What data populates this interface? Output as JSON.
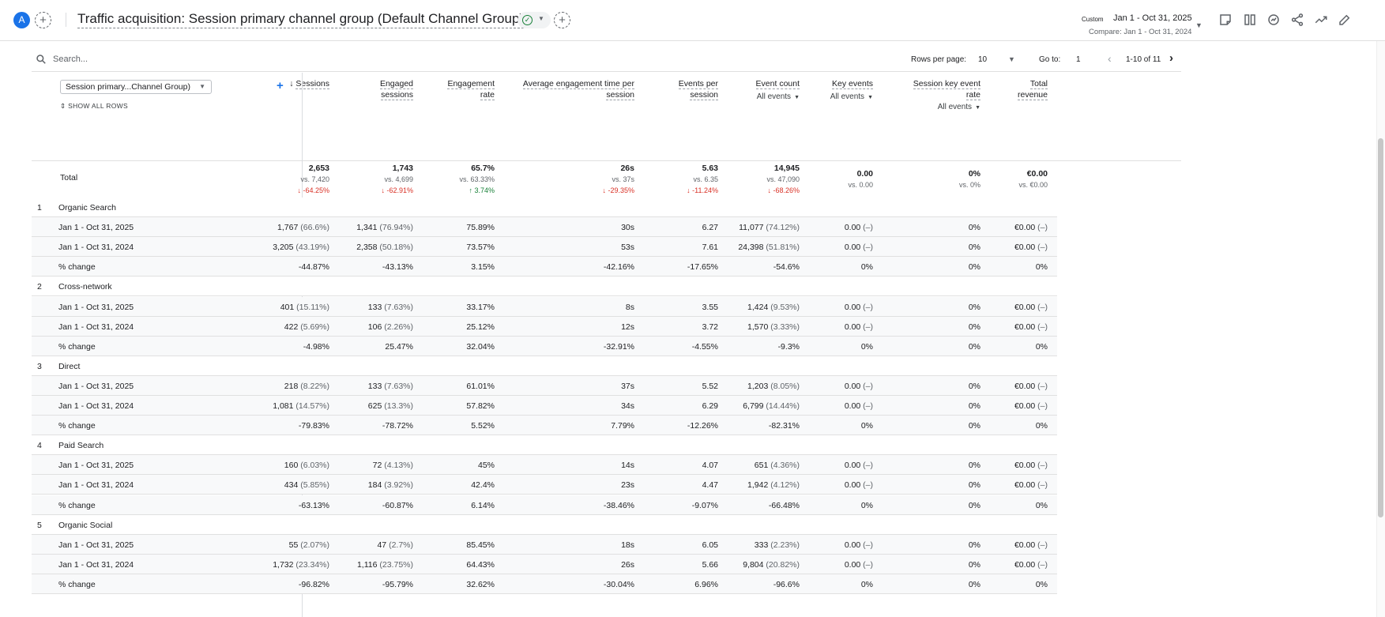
{
  "header": {
    "avatar_letter": "A",
    "title": "Traffic acquisition: Session primary channel group (Default Channel Group)",
    "date_custom": "Custom",
    "date_range": "Jan 1 - Oct 31, 2025",
    "date_compare": "Compare: Jan 1 - Oct 31, 2024",
    "icons": [
      "add-comparison-icon",
      "status-check-icon",
      "add-report-icon",
      "insights-note-icon",
      "compare-columns-icon",
      "explore-icon",
      "share-icon",
      "trend-icon",
      "edit-icon"
    ]
  },
  "toolbar": {
    "search_placeholder": "Search...",
    "rows_per_page_label": "Rows per page:",
    "rows_per_page_value": "10",
    "goto_label": "Go to:",
    "goto_value": "1",
    "page_info": "1-10 of 11"
  },
  "dimension": {
    "select_label": "Session primary...Channel Group)",
    "show_all": "SHOW ALL ROWS"
  },
  "columns": [
    {
      "label1": "Sessions",
      "label2": "",
      "sub": ""
    },
    {
      "label1": "Engaged",
      "label2": "sessions",
      "sub": ""
    },
    {
      "label1": "Engagement",
      "label2": "rate",
      "sub": ""
    },
    {
      "label1": "Average engagement time per",
      "label2": "session",
      "sub": ""
    },
    {
      "label1": "Events per",
      "label2": "session",
      "sub": ""
    },
    {
      "label1": "Event count",
      "label2": "",
      "sub": "All events"
    },
    {
      "label1": "Key events",
      "label2": "",
      "sub": "All events"
    },
    {
      "label1": "Session key event",
      "label2": "rate",
      "sub": "All events"
    },
    {
      "label1": "Total",
      "label2": "revenue",
      "sub": ""
    }
  ],
  "totals": {
    "label": "Total",
    "cells": [
      {
        "v": "2,653",
        "c": "vs. 7,420",
        "p": "↓ -64.25%",
        "dir": "down"
      },
      {
        "v": "1,743",
        "c": "vs. 4,699",
        "p": "↓ -62.91%",
        "dir": "down"
      },
      {
        "v": "65.7%",
        "c": "vs. 63.33%",
        "p": "↑ 3.74%",
        "dir": "up"
      },
      {
        "v": "26s",
        "c": "vs. 37s",
        "p": "↓ -29.35%",
        "dir": "down"
      },
      {
        "v": "5.63",
        "c": "vs. 6.35",
        "p": "↓ -11.24%",
        "dir": "down"
      },
      {
        "v": "14,945",
        "c": "vs. 47,090",
        "p": "↓ -68.26%",
        "dir": "down"
      },
      {
        "v": "0.00",
        "c": "vs. 0.00",
        "p": "",
        "dir": ""
      },
      {
        "v": "0%",
        "c": "vs. 0%",
        "p": "",
        "dir": ""
      },
      {
        "v": "€0.00",
        "c": "vs. €0.00",
        "p": "",
        "dir": ""
      }
    ]
  },
  "groups": [
    {
      "index": "1",
      "name": "Organic Search",
      "rows": [
        {
          "label": "Jan 1 - Oct 31, 2025",
          "cells": [
            [
              "1,767",
              " (66.6%)"
            ],
            [
              "1,341",
              " (76.94%)"
            ],
            [
              "75.89%",
              ""
            ],
            [
              "30s",
              ""
            ],
            [
              "6.27",
              ""
            ],
            [
              "11,077",
              " (74.12%)"
            ],
            [
              "0.00",
              " (–)"
            ],
            [
              "0%",
              ""
            ],
            [
              "€0.00",
              " (–)"
            ]
          ]
        },
        {
          "label": "Jan 1 - Oct 31, 2024",
          "cells": [
            [
              "3,205",
              " (43.19%)"
            ],
            [
              "2,358",
              " (50.18%)"
            ],
            [
              "73.57%",
              ""
            ],
            [
              "53s",
              ""
            ],
            [
              "7.61",
              ""
            ],
            [
              "24,398",
              " (51.81%)"
            ],
            [
              "0.00",
              " (–)"
            ],
            [
              "0%",
              ""
            ],
            [
              "€0.00",
              " (–)"
            ]
          ]
        },
        {
          "label": "% change",
          "cells": [
            [
              "-44.87%",
              ""
            ],
            [
              "-43.13%",
              ""
            ],
            [
              "3.15%",
              ""
            ],
            [
              "-42.16%",
              ""
            ],
            [
              "-17.65%",
              ""
            ],
            [
              "-54.6%",
              ""
            ],
            [
              "0%",
              ""
            ],
            [
              "0%",
              ""
            ],
            [
              "0%",
              ""
            ]
          ]
        }
      ]
    },
    {
      "index": "2",
      "name": "Cross-network",
      "rows": [
        {
          "label": "Jan 1 - Oct 31, 2025",
          "cells": [
            [
              "401",
              " (15.11%)"
            ],
            [
              "133",
              " (7.63%)"
            ],
            [
              "33.17%",
              ""
            ],
            [
              "8s",
              ""
            ],
            [
              "3.55",
              ""
            ],
            [
              "1,424",
              " (9.53%)"
            ],
            [
              "0.00",
              " (–)"
            ],
            [
              "0%",
              ""
            ],
            [
              "€0.00",
              " (–)"
            ]
          ]
        },
        {
          "label": "Jan 1 - Oct 31, 2024",
          "cells": [
            [
              "422",
              " (5.69%)"
            ],
            [
              "106",
              " (2.26%)"
            ],
            [
              "25.12%",
              ""
            ],
            [
              "12s",
              ""
            ],
            [
              "3.72",
              ""
            ],
            [
              "1,570",
              " (3.33%)"
            ],
            [
              "0.00",
              " (–)"
            ],
            [
              "0%",
              ""
            ],
            [
              "€0.00",
              " (–)"
            ]
          ]
        },
        {
          "label": "% change",
          "cells": [
            [
              "-4.98%",
              ""
            ],
            [
              "25.47%",
              ""
            ],
            [
              "32.04%",
              ""
            ],
            [
              "-32.91%",
              ""
            ],
            [
              "-4.55%",
              ""
            ],
            [
              "-9.3%",
              ""
            ],
            [
              "0%",
              ""
            ],
            [
              "0%",
              ""
            ],
            [
              "0%",
              ""
            ]
          ]
        }
      ]
    },
    {
      "index": "3",
      "name": "Direct",
      "rows": [
        {
          "label": "Jan 1 - Oct 31, 2025",
          "cells": [
            [
              "218",
              " (8.22%)"
            ],
            [
              "133",
              " (7.63%)"
            ],
            [
              "61.01%",
              ""
            ],
            [
              "37s",
              ""
            ],
            [
              "5.52",
              ""
            ],
            [
              "1,203",
              " (8.05%)"
            ],
            [
              "0.00",
              " (–)"
            ],
            [
              "0%",
              ""
            ],
            [
              "€0.00",
              " (–)"
            ]
          ]
        },
        {
          "label": "Jan 1 - Oct 31, 2024",
          "cells": [
            [
              "1,081",
              " (14.57%)"
            ],
            [
              "625",
              " (13.3%)"
            ],
            [
              "57.82%",
              ""
            ],
            [
              "34s",
              ""
            ],
            [
              "6.29",
              ""
            ],
            [
              "6,799",
              " (14.44%)"
            ],
            [
              "0.00",
              " (–)"
            ],
            [
              "0%",
              ""
            ],
            [
              "€0.00",
              " (–)"
            ]
          ]
        },
        {
          "label": "% change",
          "cells": [
            [
              "-79.83%",
              ""
            ],
            [
              "-78.72%",
              ""
            ],
            [
              "5.52%",
              ""
            ],
            [
              "7.79%",
              ""
            ],
            [
              "-12.26%",
              ""
            ],
            [
              "-82.31%",
              ""
            ],
            [
              "0%",
              ""
            ],
            [
              "0%",
              ""
            ],
            [
              "0%",
              ""
            ]
          ]
        }
      ]
    },
    {
      "index": "4",
      "name": "Paid Search",
      "rows": [
        {
          "label": "Jan 1 - Oct 31, 2025",
          "cells": [
            [
              "160",
              " (6.03%)"
            ],
            [
              "72",
              " (4.13%)"
            ],
            [
              "45%",
              ""
            ],
            [
              "14s",
              ""
            ],
            [
              "4.07",
              ""
            ],
            [
              "651",
              " (4.36%)"
            ],
            [
              "0.00",
              " (–)"
            ],
            [
              "0%",
              ""
            ],
            [
              "€0.00",
              " (–)"
            ]
          ]
        },
        {
          "label": "Jan 1 - Oct 31, 2024",
          "cells": [
            [
              "434",
              " (5.85%)"
            ],
            [
              "184",
              " (3.92%)"
            ],
            [
              "42.4%",
              ""
            ],
            [
              "23s",
              ""
            ],
            [
              "4.47",
              ""
            ],
            [
              "1,942",
              " (4.12%)"
            ],
            [
              "0.00",
              " (–)"
            ],
            [
              "0%",
              ""
            ],
            [
              "€0.00",
              " (–)"
            ]
          ]
        },
        {
          "label": "% change",
          "cells": [
            [
              "-63.13%",
              ""
            ],
            [
              "-60.87%",
              ""
            ],
            [
              "6.14%",
              ""
            ],
            [
              "-38.46%",
              ""
            ],
            [
              "-9.07%",
              ""
            ],
            [
              "-66.48%",
              ""
            ],
            [
              "0%",
              ""
            ],
            [
              "0%",
              ""
            ],
            [
              "0%",
              ""
            ]
          ]
        }
      ]
    },
    {
      "index": "5",
      "name": "Organic Social",
      "rows": [
        {
          "label": "Jan 1 - Oct 31, 2025",
          "cells": [
            [
              "55",
              " (2.07%)"
            ],
            [
              "47",
              " (2.7%)"
            ],
            [
              "85.45%",
              ""
            ],
            [
              "18s",
              ""
            ],
            [
              "6.05",
              ""
            ],
            [
              "333",
              " (2.23%)"
            ],
            [
              "0.00",
              " (–)"
            ],
            [
              "0%",
              ""
            ],
            [
              "€0.00",
              " (–)"
            ]
          ]
        },
        {
          "label": "Jan 1 - Oct 31, 2024",
          "cells": [
            [
              "1,732",
              " (23.34%)"
            ],
            [
              "1,116",
              " (23.75%)"
            ],
            [
              "64.43%",
              ""
            ],
            [
              "26s",
              ""
            ],
            [
              "5.66",
              ""
            ],
            [
              "9,804",
              " (20.82%)"
            ],
            [
              "0.00",
              " (–)"
            ],
            [
              "0%",
              ""
            ],
            [
              "€0.00",
              " (–)"
            ]
          ]
        },
        {
          "label": "% change",
          "cells": [
            [
              "-96.82%",
              ""
            ],
            [
              "-95.79%",
              ""
            ],
            [
              "32.62%",
              ""
            ],
            [
              "-30.04%",
              ""
            ],
            [
              "6.96%",
              ""
            ],
            [
              "-96.6%",
              ""
            ],
            [
              "0%",
              ""
            ],
            [
              "0%",
              ""
            ],
            [
              "0%",
              ""
            ]
          ]
        }
      ]
    }
  ]
}
